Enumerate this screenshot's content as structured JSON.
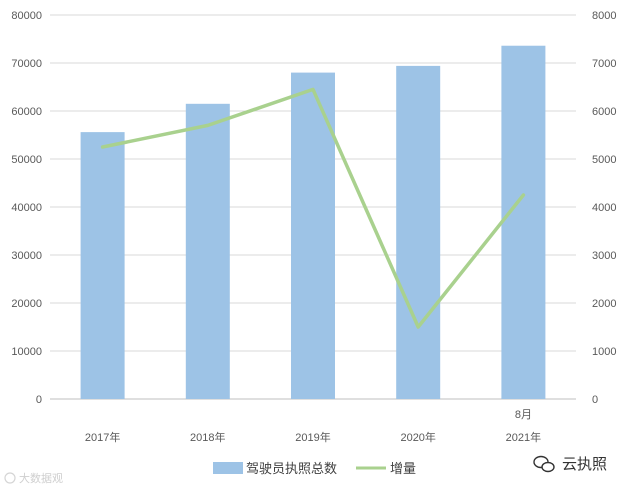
{
  "chart_data": {
    "type": "bar+line",
    "categories": [
      "2017年",
      "2018年",
      "2019年",
      "2020年",
      "2021年"
    ],
    "category_annotations": [
      {
        "category": "2021年",
        "text": "8月"
      }
    ],
    "series": [
      {
        "name": "驾驶员执照总数",
        "type": "bar",
        "axis": "left",
        "color": "#9dc3e6",
        "values": [
          55600,
          61500,
          68000,
          69400,
          73600
        ]
      },
      {
        "name": "增量",
        "type": "line",
        "axis": "right",
        "color": "#a9d18e",
        "values": [
          5250,
          5700,
          6450,
          1500,
          4250
        ]
      }
    ],
    "y_left": {
      "min": 0,
      "max": 80000,
      "step": 10000
    },
    "y_right": {
      "min": 0,
      "max": 8000,
      "step": 1000
    },
    "grid": true,
    "legend_position": "bottom"
  },
  "watermark": {
    "text": "大数据观"
  },
  "brand": {
    "text": "云执照",
    "icon": "wechat-icon"
  }
}
